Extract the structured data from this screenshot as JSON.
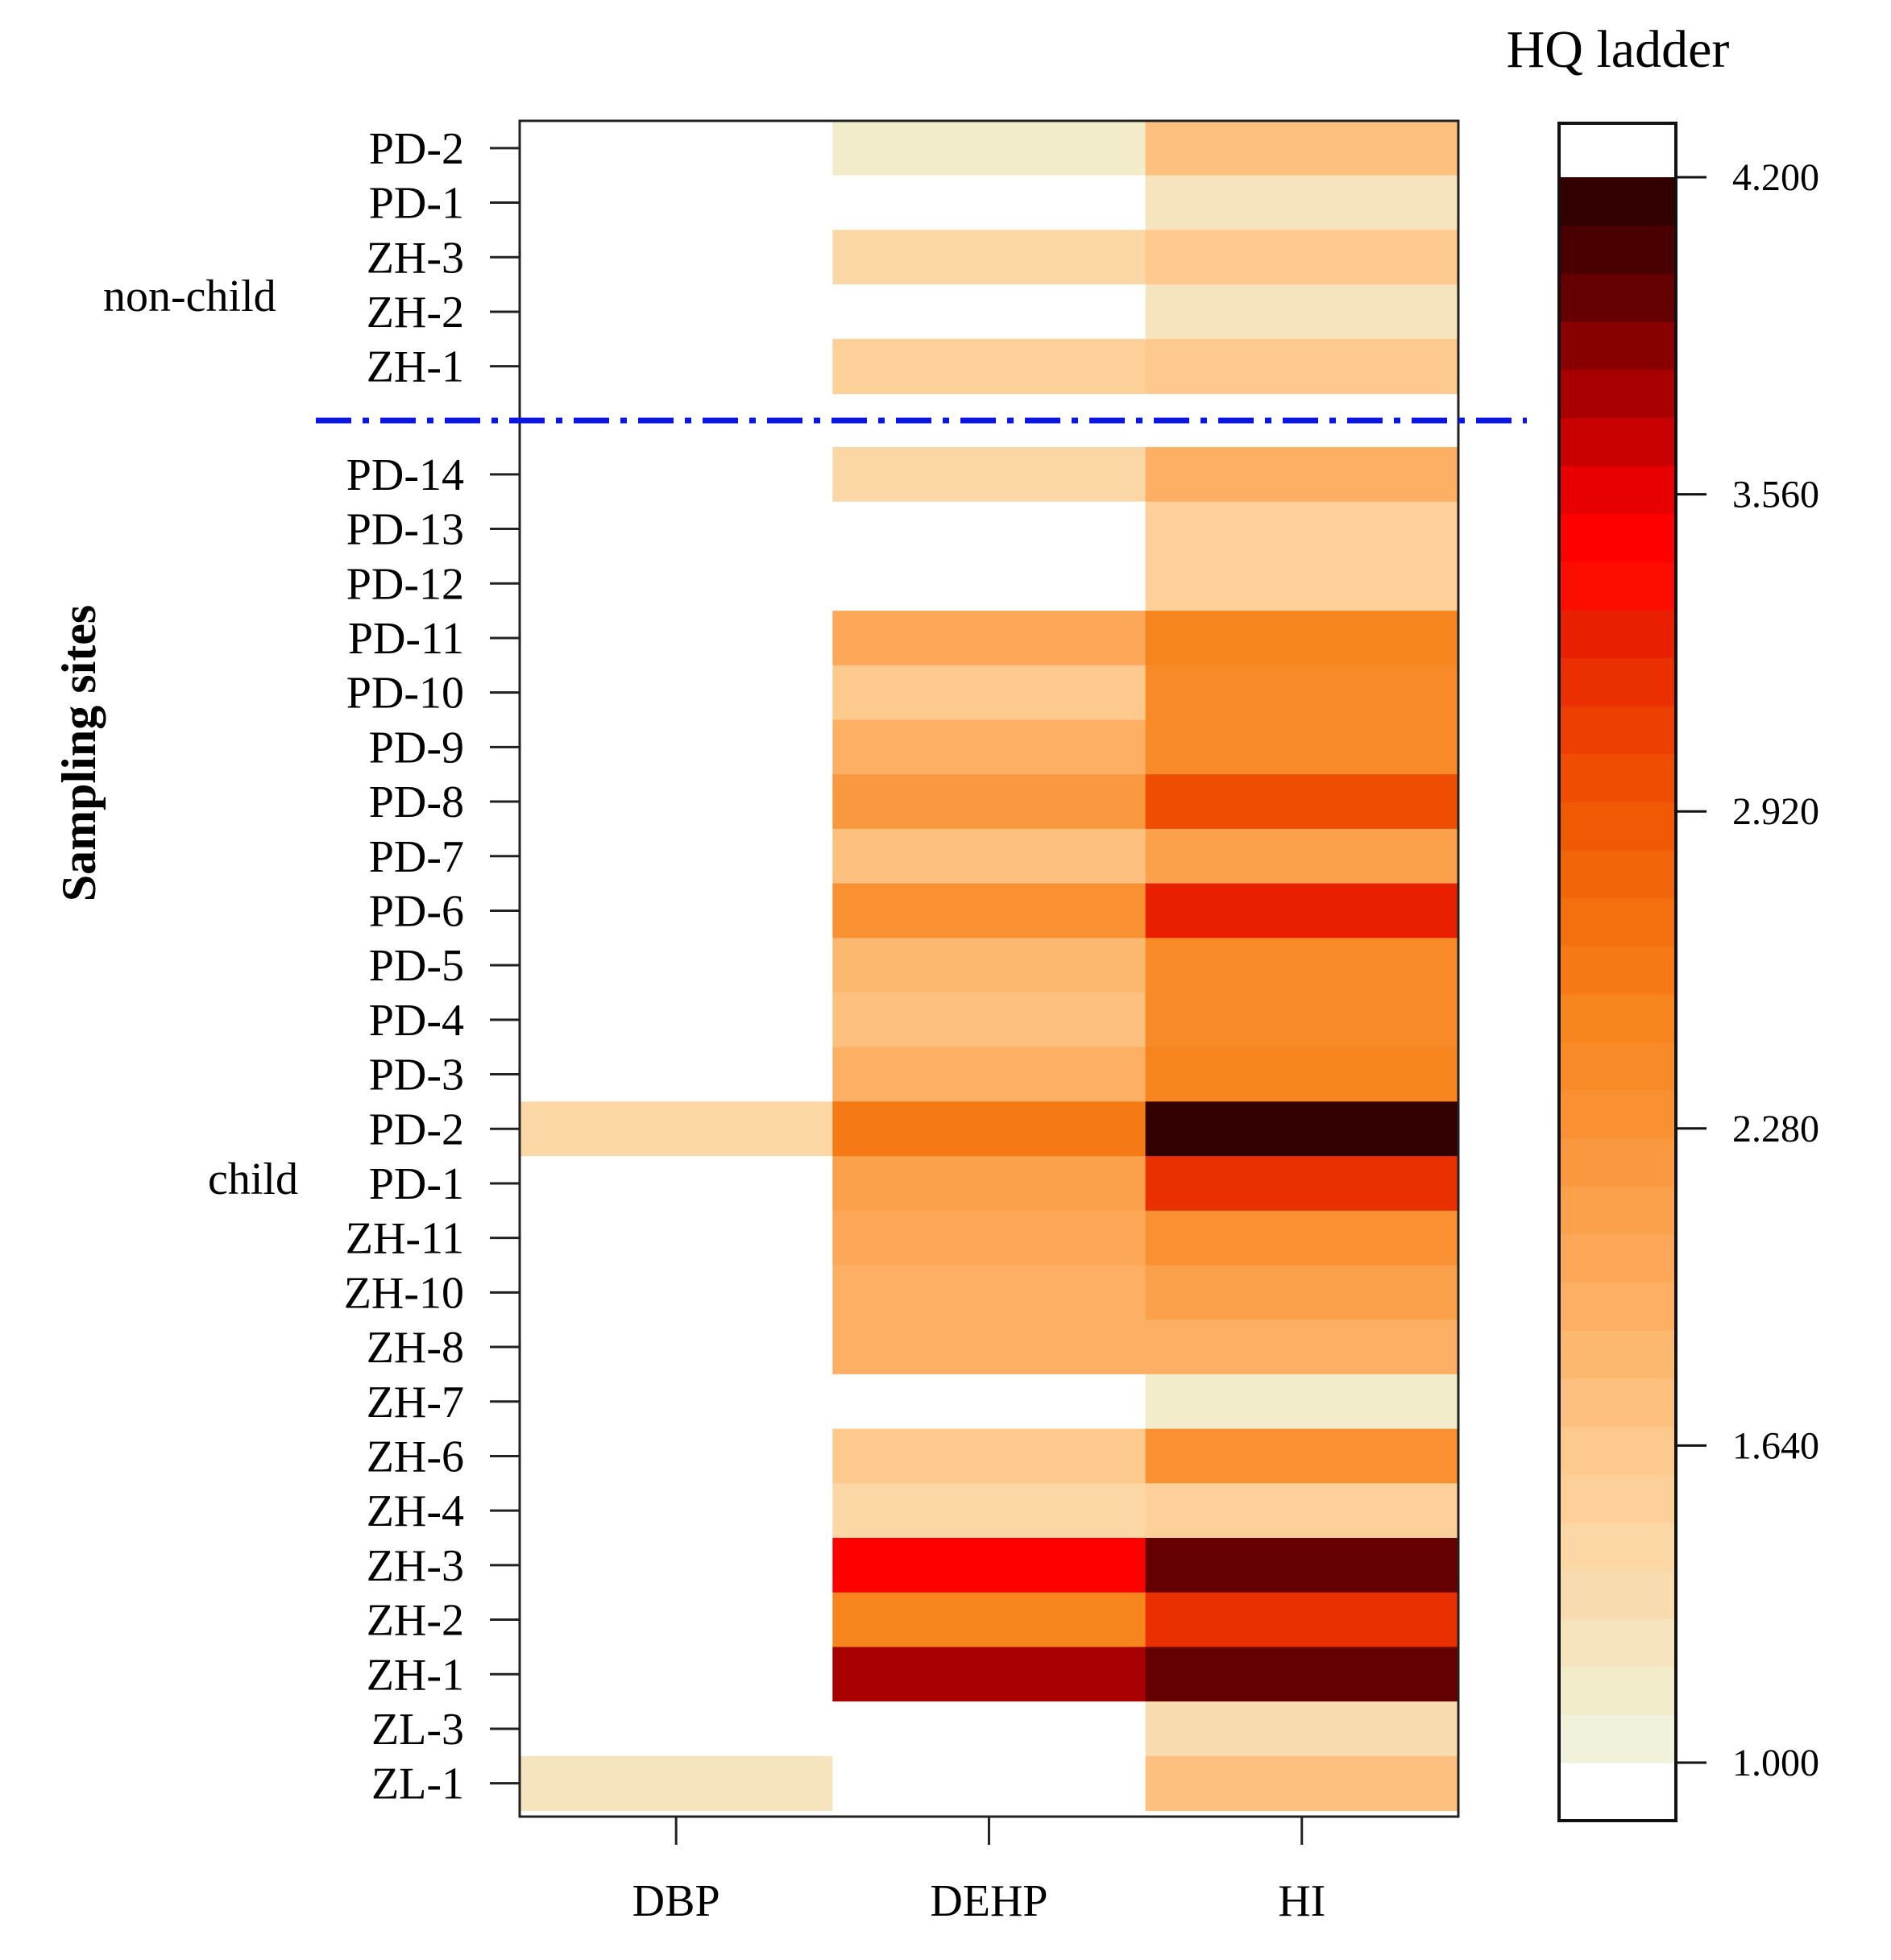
{
  "chart_data": {
    "type": "heatmap",
    "ylabel": "Sampling sites",
    "columns": [
      "DBP",
      "DEHP",
      "HI"
    ],
    "groups": [
      {
        "label": "non-child",
        "rows": [
          "PD-2",
          "PD-1",
          "ZH-3",
          "ZH-2",
          "ZH-1"
        ],
        "values": [
          [
            null,
            1.1,
            1.7
          ],
          [
            null,
            null,
            1.25
          ],
          [
            null,
            1.45,
            1.6
          ],
          [
            null,
            null,
            1.25
          ],
          [
            null,
            1.55,
            1.65
          ]
        ]
      },
      {
        "label": "child",
        "rows": [
          "PD-14",
          "PD-13",
          "PD-12",
          "PD-11",
          "PD-10",
          "PD-9",
          "PD-8",
          "PD-7",
          "PD-6",
          "PD-5",
          "PD-4",
          "PD-3",
          "PD-2",
          "PD-1",
          "ZH-11",
          "ZH-10",
          "ZH-8",
          "ZH-7",
          "ZH-6",
          "ZH-4",
          "ZH-3",
          "ZH-2",
          "ZH-1",
          "ZL-3",
          "ZL-1"
        ],
        "values": [
          [
            null,
            1.4,
            1.9
          ],
          [
            null,
            null,
            1.5
          ],
          [
            null,
            null,
            1.5
          ],
          [
            null,
            2.0,
            2.55
          ],
          [
            null,
            1.6,
            2.4
          ],
          [
            null,
            1.9,
            2.45
          ],
          [
            null,
            2.2,
            2.95
          ],
          [
            null,
            1.75,
            2.15
          ],
          [
            null,
            2.35,
            3.3
          ],
          [
            null,
            1.8,
            2.45
          ],
          [
            null,
            1.7,
            2.45
          ],
          [
            null,
            1.9,
            2.5
          ],
          [
            1.45,
            2.6,
            4.2
          ],
          [
            null,
            2.1,
            3.15
          ],
          [
            null,
            2.05,
            2.35
          ],
          [
            null,
            1.95,
            2.1
          ],
          [
            null,
            1.95,
            1.95
          ],
          [
            null,
            null,
            1.1
          ],
          [
            null,
            1.6,
            2.35
          ],
          [
            null,
            1.4,
            1.5
          ],
          [
            null,
            3.45,
            3.95
          ],
          [
            null,
            2.55,
            3.2
          ],
          [
            null,
            3.8,
            3.95
          ],
          [
            null,
            null,
            1.3
          ],
          [
            1.2,
            null,
            1.75
          ]
        ]
      }
    ],
    "colorbar": {
      "title": "HQ ladder",
      "min": 1.0,
      "max": 4.2,
      "ticks": [
        "1.000",
        "1.640",
        "2.280",
        "2.920",
        "3.560",
        "4.200"
      ],
      "bins": 30,
      "colors": [
        "#f2f2dc",
        "#f3eccb",
        "#f6e4be",
        "#f8dcb0",
        "#fbd7a6",
        "#fdd09a",
        "#fdc98c",
        "#fdc07e",
        "#fdb870",
        "#fdb064",
        "#fca858",
        "#fba04b",
        "#fa9840",
        "#f99133",
        "#f88b28",
        "#f7851d",
        "#f57a15",
        "#f4700e",
        "#f26509",
        "#f05a05",
        "#ee4d02",
        "#ec3f00",
        "#ea3000",
        "#e92000",
        "#fc0d00",
        "#ff0000",
        "#e60000",
        "#c80000",
        "#a80000",
        "#880000",
        "#640000",
        "#4a0000",
        "#330000"
      ],
      "low_color": "#ffffff"
    },
    "separator": {
      "color": "#0b16e6",
      "style": "dash-dot"
    }
  }
}
